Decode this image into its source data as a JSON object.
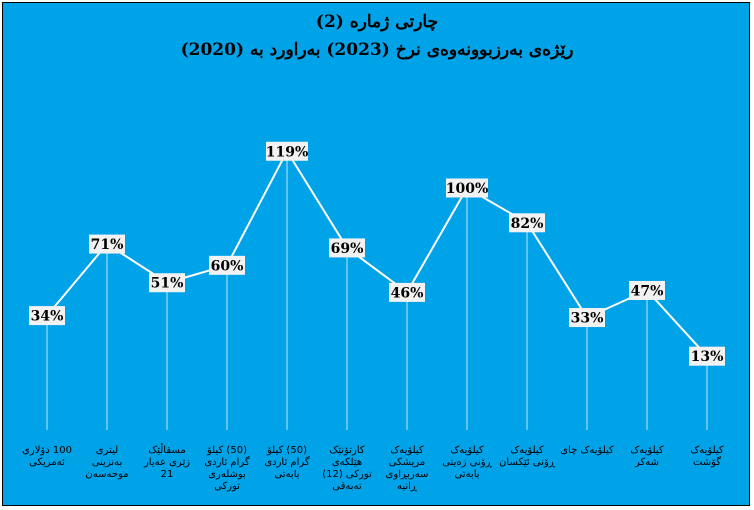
{
  "chart_data": {
    "type": "line",
    "title": "چارتی ژمارە (2)",
    "subtitle": "رێژەی بەرزبوونەوەی نرخ (2023) بەراورد بە (2020)",
    "categories": [
      "100 دۆلاری ئەمریکی",
      "لیتری بەنزینی موحەسەن",
      "مسقاڵێک زێری عەیار 21",
      "(50) کیلۆ گرام ئاردی بوشلەری تورکی",
      "(50) کیلۆ گرام ئاردی بابەتی",
      "کارتۆنێک هێلکەی تورکی (12) تەبەقی",
      "کیلۆیەک مریشکی سەربڕاوی ڕانیە",
      "کیلۆیەک ڕۆنی زەیتی بابەتی",
      "کیلۆیەک ڕۆنی ئێکسان",
      "کیلۆیەک چای",
      "کیلۆیەک شەکر",
      "کیلۆیەک گۆشت"
    ],
    "series": [
      {
        "values": [
          34,
          71,
          51,
          60,
          119,
          69,
          46,
          100,
          82,
          33,
          47,
          13
        ],
        "labels": [
          "34%",
          "71%",
          "51%",
          "60%",
          "119%",
          "69%",
          "46%",
          "100%",
          "82%",
          "33%",
          "47%",
          "13%"
        ]
      }
    ],
    "ylim": [
      -20,
      130
    ],
    "grid": false,
    "legend": "none",
    "colors": {
      "background": "#00a2e8",
      "line": "#ffffff",
      "label_box": "#f2f2f2",
      "text": "#000000"
    }
  }
}
